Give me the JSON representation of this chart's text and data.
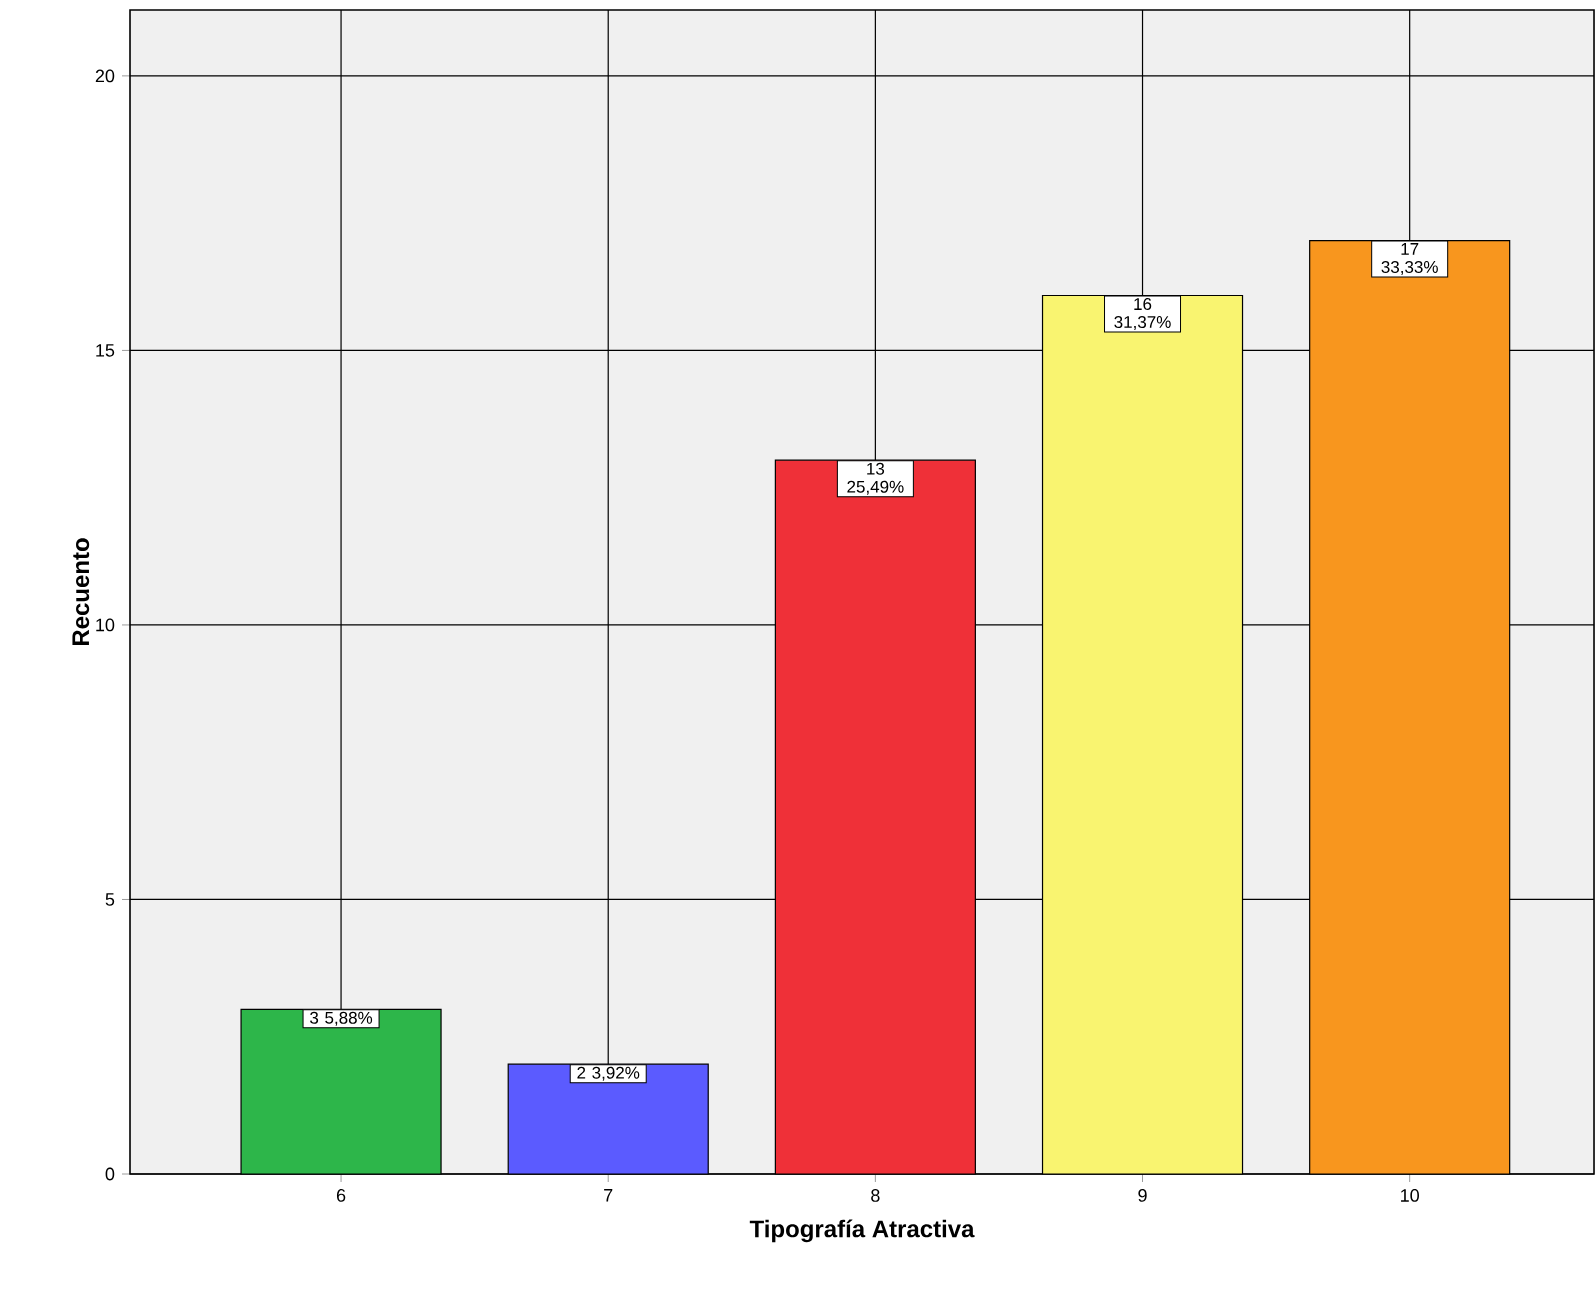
{
  "chart_data": {
    "type": "bar",
    "xlabel": "Tipografía Atractiva",
    "ylabel": "Recuento",
    "categories": [
      "6",
      "7",
      "8",
      "9",
      "10"
    ],
    "values": [
      3,
      2,
      13,
      16,
      17
    ],
    "colors": [
      "#2db64a",
      "#5b5bff",
      "#ef3038",
      "#f9f470",
      "#f8961e"
    ],
    "value_labels": [
      "3 5,88%",
      "2 3,92%",
      "13 25,49%",
      "16 31,37%",
      "17 33,33%"
    ],
    "ylim": [
      0,
      21.2
    ],
    "yticks": [
      0,
      5,
      10,
      15,
      20
    ],
    "grid": true
  }
}
